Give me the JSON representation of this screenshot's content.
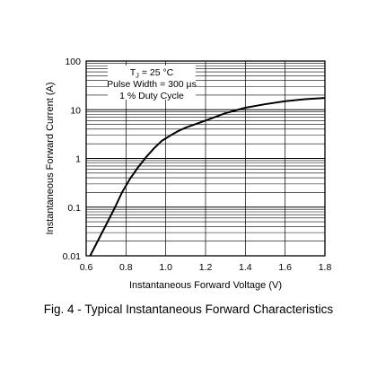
{
  "chart_data": {
    "type": "line",
    "title": "",
    "xlabel": "Instantaneous Forward Voltage (V)",
    "ylabel": "Instantaneous Forward Current (A)",
    "xlim": [
      0.6,
      1.8
    ],
    "ylim": [
      0.01,
      100
    ],
    "yscale": "log",
    "grid": true,
    "x_ticks": [
      "0.6",
      "0.8",
      "1.0",
      "1.2",
      "1.4",
      "1.6",
      "1.8"
    ],
    "y_ticks": [
      "0.01",
      "0.1",
      "1",
      "10",
      "100"
    ],
    "annotation": {
      "line1_main": "T",
      "line1_sub": "J",
      "line1_rest": " = 25 °C",
      "line2": "Pulse Width = 300 µs",
      "line3": "1 % Duty Cycle"
    },
    "series": [
      {
        "x": [
          0.62,
          0.68,
          0.74,
          0.78,
          0.82,
          0.86,
          0.9,
          0.94,
          0.98,
          1.02,
          1.06,
          1.1,
          1.2,
          1.3,
          1.4,
          1.5,
          1.6,
          1.7,
          1.8
        ],
        "y": [
          0.01,
          0.03,
          0.09,
          0.2,
          0.38,
          0.65,
          1.05,
          1.6,
          2.3,
          2.9,
          3.6,
          4.3,
          6.0,
          8.5,
          11.0,
          13.0,
          15.0,
          16.5,
          17.5
        ]
      }
    ]
  },
  "caption": "Fig. 4 - Typical Instantaneous Forward Characteristics"
}
